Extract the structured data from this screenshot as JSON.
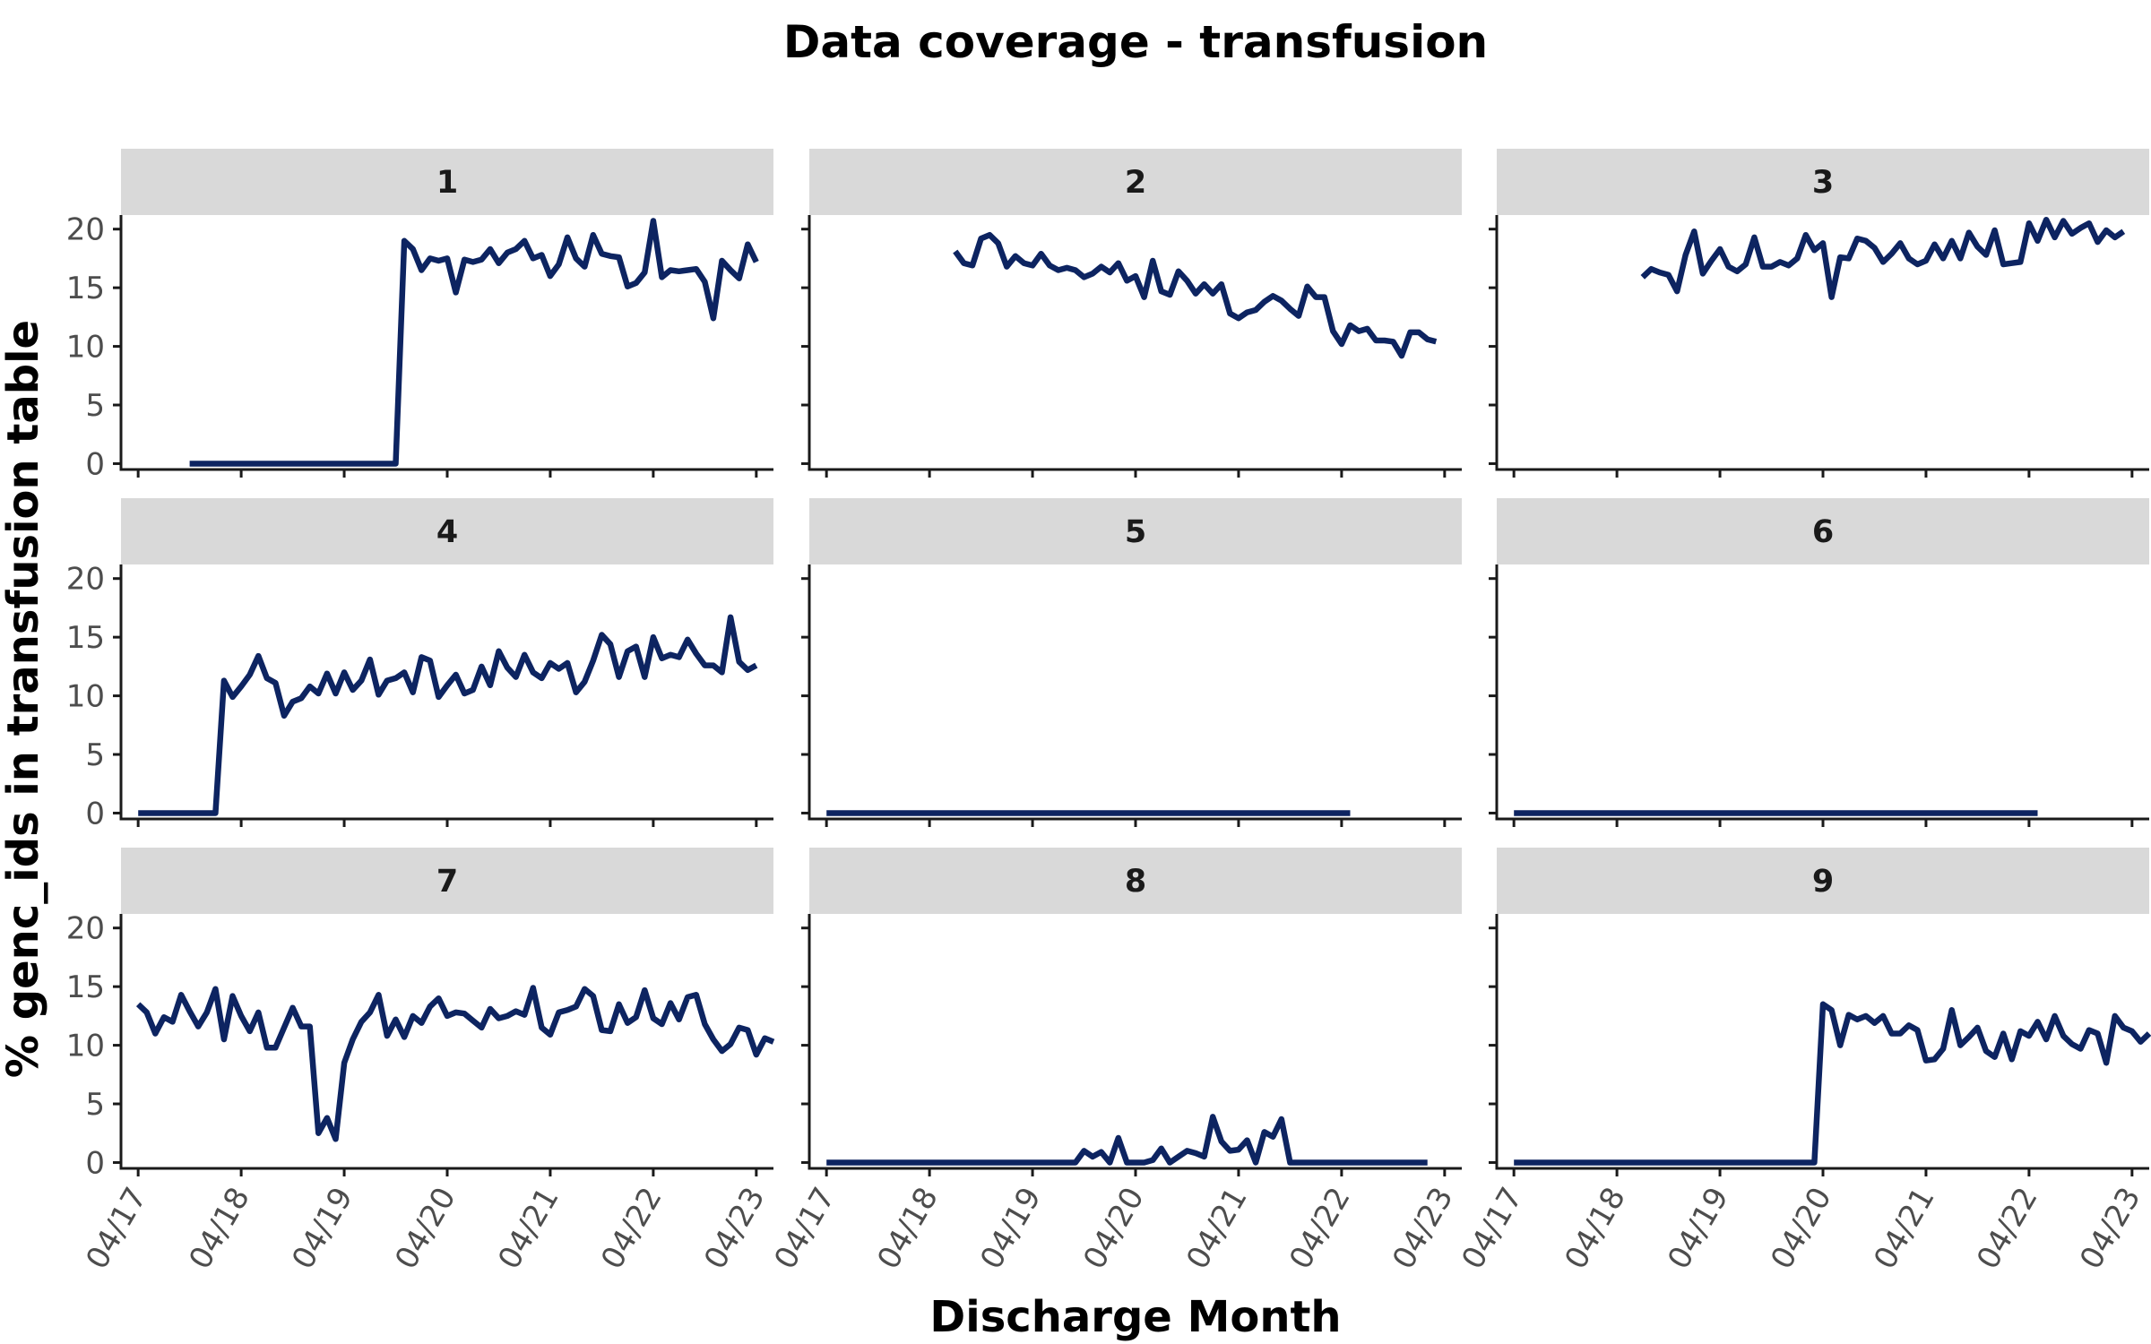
{
  "chart_data": {
    "type": "line",
    "title": "Data coverage - transfusion",
    "xlabel": "Discharge Month",
    "ylabel": "% genc_ids in transfusion table",
    "x_ticks": [
      "04/17",
      "04/18",
      "04/19",
      "04/20",
      "04/21",
      "04/22",
      "04/23"
    ],
    "x_range": [
      "2017-02",
      "2023-06"
    ],
    "y_ticks": [
      0,
      5,
      10,
      15,
      20
    ],
    "ylim": [
      -0.5,
      21.2
    ],
    "grid": false,
    "legend": "none",
    "line_color": "#0d2461",
    "facets": [
      {
        "label": "1",
        "start": "2017-10",
        "values": [
          0,
          0,
          0,
          0,
          0,
          0,
          0,
          0,
          0,
          0,
          0,
          0,
          0,
          0,
          0,
          0,
          0,
          0,
          0,
          0,
          0,
          0,
          0,
          0,
          0,
          19.0,
          18.3,
          16.5,
          17.5,
          17.3,
          17.5,
          14.6,
          17.4,
          17.2,
          17.4,
          18.3,
          17.1,
          18.0,
          18.3,
          19.0,
          17.5,
          17.8,
          16.0,
          17.0,
          19.3,
          17.5,
          16.8,
          19.5,
          17.9,
          17.7,
          17.6,
          15.1,
          15.4,
          16.3,
          20.7,
          15.9,
          16.5,
          16.4,
          16.5,
          16.6,
          15.5,
          12.4,
          17.3,
          16.5,
          15.8,
          18.7,
          17.2
        ]
      },
      {
        "label": "2",
        "start": "2018-07",
        "values": [
          18.1,
          17.1,
          16.9,
          19.2,
          19.5,
          18.8,
          16.8,
          17.7,
          17.1,
          16.9,
          17.9,
          16.9,
          16.5,
          16.7,
          16.5,
          15.9,
          16.2,
          16.8,
          16.3,
          17.1,
          15.6,
          16.0,
          14.2,
          17.3,
          14.7,
          14.4,
          16.4,
          15.6,
          14.5,
          15.3,
          14.5,
          15.3,
          12.8,
          12.4,
          12.9,
          13.1,
          13.8,
          14.3,
          13.9,
          13.2,
          12.6,
          15.1,
          14.2,
          14.2,
          11.3,
          10.2,
          11.8,
          11.3,
          11.5,
          10.5,
          10.5,
          10.4,
          9.2,
          11.2,
          11.2,
          10.6,
          10.4
        ]
      },
      {
        "label": "3",
        "start": "2018-07",
        "values": [
          15.9,
          16.6,
          16.3,
          16.1,
          14.7,
          17.8,
          19.8,
          16.2,
          17.3,
          18.3,
          16.8,
          16.4,
          17.0,
          19.3,
          16.8,
          16.8,
          17.2,
          16.9,
          17.5,
          19.5,
          18.2,
          18.8,
          14.2,
          17.6,
          17.5,
          19.2,
          19.0,
          18.4,
          17.2,
          17.9,
          18.8,
          17.5,
          17.0,
          17.3,
          18.7,
          17.5,
          19.0,
          17.5,
          19.7,
          18.5,
          17.8,
          19.9,
          17.0,
          17.1,
          17.2,
          20.5,
          19.0,
          20.8,
          19.3,
          20.7,
          19.6,
          20.1,
          20.5,
          18.9,
          19.9,
          19.3,
          19.8
        ]
      },
      {
        "label": "4",
        "start": "2017-04",
        "values": [
          0,
          0,
          0,
          0,
          0,
          0,
          0,
          0,
          0,
          0,
          11.3,
          9.9,
          10.8,
          11.8,
          13.4,
          11.5,
          11.1,
          8.3,
          9.5,
          9.8,
          10.8,
          10.2,
          11.9,
          10.2,
          12.0,
          10.5,
          11.3,
          13.1,
          10.1,
          11.3,
          11.5,
          12.0,
          10.3,
          13.3,
          13.0,
          9.9,
          10.9,
          11.8,
          10.2,
          10.5,
          12.5,
          10.9,
          13.8,
          12.4,
          11.6,
          13.5,
          12.0,
          11.5,
          12.8,
          12.3,
          12.8,
          10.3,
          11.2,
          13.0,
          15.2,
          14.4,
          11.6,
          13.8,
          14.2,
          11.6,
          15.0,
          13.2,
          13.5,
          13.3,
          14.8,
          13.6,
          12.6,
          12.6,
          12.0,
          16.7,
          12.9,
          12.2,
          12.6
        ]
      },
      {
        "label": "5",
        "start": "2017-04",
        "values": [
          0,
          0,
          0,
          0,
          0,
          0,
          0,
          0,
          0,
          0,
          0,
          0,
          0,
          0,
          0,
          0,
          0,
          0,
          0,
          0,
          0,
          0,
          0,
          0,
          0,
          0,
          0,
          0,
          0,
          0,
          0,
          0,
          0,
          0,
          0,
          0,
          0,
          0,
          0,
          0,
          0,
          0,
          0,
          0,
          0,
          0,
          0,
          0,
          0,
          0,
          0,
          0,
          0,
          0,
          0,
          0,
          0,
          0,
          0,
          0,
          0,
          0
        ]
      },
      {
        "label": "6",
        "start": "2017-04",
        "values": [
          0,
          0,
          0,
          0,
          0,
          0,
          0,
          0,
          0,
          0,
          0,
          0,
          0,
          0,
          0,
          0,
          0,
          0,
          0,
          0,
          0,
          0,
          0,
          0,
          0,
          0,
          0,
          0,
          0,
          0,
          0,
          0,
          0,
          0,
          0,
          0,
          0,
          0,
          0,
          0,
          0,
          0,
          0,
          0,
          0,
          0,
          0,
          0,
          0,
          0,
          0,
          0,
          0,
          0,
          0,
          0,
          0,
          0,
          0,
          0,
          0,
          0
        ]
      },
      {
        "label": "7",
        "start": "2017-04",
        "values": [
          13.5,
          12.8,
          11.0,
          12.4,
          12.0,
          14.3,
          12.9,
          11.6,
          12.8,
          14.8,
          10.5,
          14.2,
          12.5,
          11.2,
          12.8,
          9.8,
          9.8,
          11.5,
          13.2,
          11.6,
          11.6,
          2.5,
          3.8,
          2.0,
          8.5,
          10.5,
          12.0,
          12.8,
          14.3,
          10.8,
          12.2,
          10.7,
          12.5,
          11.9,
          13.3,
          14.0,
          12.5,
          12.8,
          12.7,
          12.1,
          11.5,
          13.1,
          12.3,
          12.5,
          12.9,
          12.6,
          14.9,
          11.5,
          10.9,
          12.8,
          13.0,
          13.3,
          14.8,
          14.2,
          11.3,
          11.2,
          13.5,
          11.9,
          12.4,
          14.7,
          12.3,
          11.8,
          13.6,
          12.2,
          14.1,
          14.3,
          11.8,
          10.5,
          9.5,
          10.1,
          11.5,
          11.3,
          9.2,
          10.6,
          10.3
        ]
      },
      {
        "label": "8",
        "start": "2017-04",
        "values": [
          0,
          0,
          0,
          0,
          0,
          0,
          0,
          0,
          0,
          0,
          0,
          0,
          0,
          0,
          0,
          0,
          0,
          0,
          0,
          0,
          0,
          0,
          0,
          0,
          0,
          0,
          0,
          0,
          0,
          0,
          1.0,
          0.5,
          0.9,
          0,
          2.1,
          0,
          0,
          0,
          0.2,
          1.2,
          0,
          0.5,
          1.0,
          0.8,
          0.5,
          3.9,
          1.8,
          1.0,
          1.1,
          1.9,
          0,
          2.6,
          2.2,
          3.7,
          0,
          0,
          0,
          0,
          0,
          0,
          0,
          0,
          0,
          0,
          0,
          0,
          0,
          0,
          0,
          0,
          0
        ]
      },
      {
        "label": "9",
        "start": "2017-04",
        "values": [
          0,
          0,
          0,
          0,
          0,
          0,
          0,
          0,
          0,
          0,
          0,
          0,
          0,
          0,
          0,
          0,
          0,
          0,
          0,
          0,
          0,
          0,
          0,
          0,
          0,
          0,
          0,
          0,
          0,
          0,
          0,
          0,
          0,
          0,
          0,
          0,
          13.5,
          13.0,
          10.0,
          12.6,
          12.2,
          12.5,
          11.9,
          12.5,
          11.0,
          11.0,
          11.7,
          11.3,
          8.7,
          8.8,
          9.7,
          13.0,
          10.0,
          10.7,
          11.5,
          9.5,
          9.0,
          11.0,
          8.8,
          11.2,
          10.8,
          12.0,
          10.5,
          12.5,
          10.8,
          10.1,
          9.7,
          11.3,
          11.0,
          8.5,
          12.5,
          11.5,
          11.2,
          10.3,
          11.0
        ]
      }
    ]
  }
}
